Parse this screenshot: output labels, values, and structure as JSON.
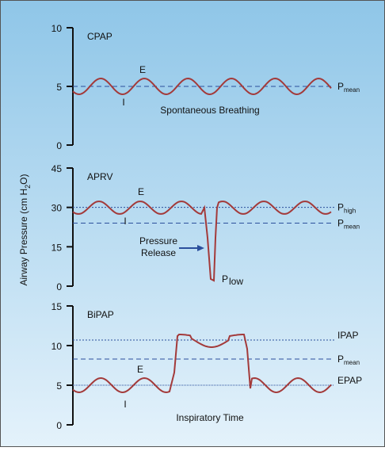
{
  "y_axis_label": [
    "Airway Pressure (cm H",
    "2",
    "O)"
  ],
  "chart_data": [
    {
      "type": "line",
      "title": "CPAP",
      "ylim": [
        0,
        10
      ],
      "yticks": [
        0,
        5,
        10
      ],
      "reference_lines": [
        {
          "value": 5,
          "label": "P",
          "sub": "mean"
        }
      ],
      "annotations": [
        "E",
        "I",
        "Spontaneous Breathing"
      ]
    },
    {
      "type": "line",
      "title": "APRV",
      "ylim": [
        0,
        45
      ],
      "yticks": [
        0,
        15,
        30,
        45
      ],
      "reference_lines": [
        {
          "value": 30,
          "label": "P",
          "sub": "high"
        },
        {
          "value": 24,
          "label": "P",
          "sub": "mean"
        }
      ],
      "annotations": [
        "E",
        "I",
        "Pressure",
        "Release",
        "P",
        "low"
      ]
    },
    {
      "type": "line",
      "title": "BiPAP",
      "ylim": [
        0,
        15
      ],
      "yticks": [
        0,
        5,
        10,
        15
      ],
      "reference_lines": [
        {
          "value": 10.7,
          "label": "IPAP"
        },
        {
          "value": 8.3,
          "label": "P",
          "sub": "mean"
        },
        {
          "value": 5,
          "label": "EPAP"
        }
      ],
      "annotations": [
        "E",
        "I",
        "Inspiratory Time"
      ]
    }
  ]
}
